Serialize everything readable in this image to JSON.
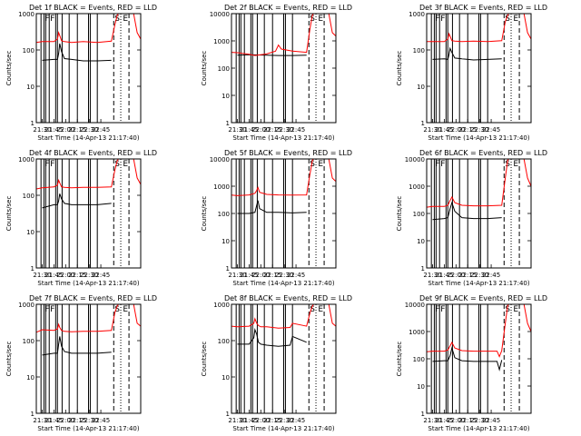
{
  "colors": {
    "events": "#000000",
    "lld": "#ff0000"
  },
  "chart_data": [
    {
      "type": "line",
      "title": "Det 1f BLACK = Events, RED = LLD",
      "xlabel": "Start Time (14-Apr-13 21:17:40)",
      "ylabel": "Counts/sec",
      "yscale": "log",
      "ylim": [
        1,
        1000
      ],
      "xticks": [
        "21:30",
        "21:45",
        "22:00",
        "22:15",
        "22:30",
        "22:45"
      ],
      "yticks": [
        "1",
        "10",
        "100",
        "1000"
      ],
      "markers": [
        "F",
        "F",
        "S",
        "E"
      ],
      "series": [
        {
          "name": "Events",
          "color": "#000000",
          "x": [
            10,
            30,
            36,
            38,
            40,
            43,
            48,
            60,
            80,
            104,
            128
          ],
          "y": [
            52,
            55,
            55,
            80,
            150,
            90,
            58,
            55,
            50,
            50,
            52
          ]
        },
        {
          "name": "LLD",
          "color": "#ff0000",
          "x": [
            0,
            10,
            30,
            36,
            38,
            40,
            43,
            48,
            60,
            80,
            104,
            128,
            134,
            138,
            140,
            160,
            166,
            172,
            178
          ],
          "y": [
            160,
            170,
            170,
            200,
            300,
            250,
            180,
            170,
            160,
            170,
            160,
            175,
            500,
            900,
            1000,
            1000,
            1000,
            300,
            200
          ]
        }
      ]
    },
    {
      "type": "line",
      "title": "Det 2f BLACK = Events, RED = LLD",
      "xlabel": "Start Time (14-Apr-13 21:17:40)",
      "ylabel": "Counts/sec",
      "yscale": "log",
      "ylim": [
        1,
        10000
      ],
      "xticks": [
        "21:30",
        "21:45",
        "22:00",
        "22:15",
        "22:30",
        "22:45"
      ],
      "yticks": [
        "1",
        "10",
        "100",
        "1000",
        "10000"
      ],
      "markers": [
        "S",
        "E"
      ],
      "series": [
        {
          "name": "Events",
          "color": "#000000",
          "x": [
            10,
            30,
            60,
            80,
            104,
            128
          ],
          "y": [
            300,
            310,
            300,
            290,
            290,
            300
          ]
        },
        {
          "name": "LLD",
          "color": "#ff0000",
          "x": [
            0,
            10,
            30,
            40,
            60,
            75,
            80,
            85,
            104,
            128,
            134,
            138,
            140,
            160,
            166,
            172,
            178
          ],
          "y": [
            380,
            370,
            320,
            290,
            330,
            420,
            700,
            500,
            420,
            380,
            3000,
            9000,
            10000,
            10000,
            10000,
            2000,
            1500
          ]
        }
      ]
    },
    {
      "type": "line",
      "title": "Det 3f BLACK = Events, RED = LLD",
      "xlabel": "Start Time (14-Apr-13 21:17:40)",
      "ylabel": "Counts/sec",
      "yscale": "log",
      "ylim": [
        1,
        1000
      ],
      "xticks": [
        "21:30",
        "21:45",
        "22:00",
        "22:15",
        "22:30",
        "22:45"
      ],
      "yticks": [
        "1",
        "10",
        "100",
        "1000"
      ],
      "markers": [
        "F",
        "F",
        "S",
        "E"
      ],
      "series": [
        {
          "name": "Events",
          "color": "#000000",
          "x": [
            10,
            30,
            36,
            38,
            40,
            43,
            48,
            60,
            80,
            104,
            128
          ],
          "y": [
            55,
            57,
            55,
            75,
            110,
            85,
            60,
            57,
            53,
            55,
            57
          ]
        },
        {
          "name": "LLD",
          "color": "#ff0000",
          "x": [
            0,
            10,
            30,
            36,
            38,
            40,
            43,
            48,
            60,
            80,
            104,
            128,
            134,
            138,
            140,
            160,
            166,
            172,
            178
          ],
          "y": [
            170,
            170,
            170,
            200,
            280,
            240,
            180,
            175,
            170,
            175,
            170,
            180,
            600,
            900,
            1000,
            1000,
            1000,
            300,
            200
          ]
        }
      ]
    },
    {
      "type": "line",
      "title": "Det 4f BLACK = Events, RED = LLD",
      "xlabel": "Start Time (14-Apr-13 21:17:40)",
      "ylabel": "Counts/sec",
      "yscale": "log",
      "ylim": [
        1,
        1000
      ],
      "xticks": [
        "21:30",
        "21:45",
        "22:00",
        "22:15",
        "22:30",
        "22:45"
      ],
      "yticks": [
        "1",
        "10",
        "100",
        "1000"
      ],
      "markers": [
        "F",
        "F",
        "S",
        "E"
      ],
      "series": [
        {
          "name": "Events",
          "color": "#000000",
          "x": [
            10,
            30,
            36,
            38,
            40,
            43,
            48,
            60,
            80,
            104,
            128
          ],
          "y": [
            45,
            55,
            55,
            70,
            110,
            80,
            60,
            55,
            55,
            55,
            60
          ]
        },
        {
          "name": "LLD",
          "color": "#ff0000",
          "x": [
            0,
            10,
            30,
            36,
            38,
            40,
            43,
            48,
            60,
            80,
            104,
            128,
            134,
            138,
            140,
            160,
            166,
            172,
            178
          ],
          "y": [
            150,
            160,
            170,
            190,
            260,
            220,
            170,
            165,
            160,
            165,
            165,
            170,
            500,
            900,
            1000,
            1000,
            1000,
            300,
            200
          ]
        }
      ]
    },
    {
      "type": "line",
      "title": "Det 5f BLACK = Events, RED = LLD",
      "xlabel": "Start Time (14-Apr-13 21:17:40)",
      "ylabel": "Counts/sec",
      "yscale": "log",
      "ylim": [
        1,
        10000
      ],
      "xticks": [
        "21:30",
        "21:45",
        "22:00",
        "22:15",
        "22:30",
        "22:45"
      ],
      "yticks": [
        "1",
        "10",
        "100",
        "1000",
        "10000"
      ],
      "markers": [
        "S",
        "E"
      ],
      "series": [
        {
          "name": "Events",
          "color": "#000000",
          "x": [
            10,
            30,
            40,
            43,
            45,
            48,
            60,
            80,
            104,
            128
          ],
          "y": [
            100,
            100,
            110,
            200,
            300,
            150,
            110,
            110,
            105,
            110
          ]
        },
        {
          "name": "LLD",
          "color": "#ff0000",
          "x": [
            0,
            10,
            30,
            40,
            43,
            45,
            48,
            60,
            80,
            104,
            128,
            134,
            138,
            140,
            160,
            166,
            172,
            178
          ],
          "y": [
            470,
            450,
            480,
            550,
            700,
            900,
            600,
            500,
            480,
            470,
            480,
            3000,
            9000,
            10000,
            10000,
            10000,
            2000,
            1500
          ]
        }
      ]
    },
    {
      "type": "line",
      "title": "Det 6f BLACK = Events, RED = LLD",
      "xlabel": "Start Time (14-Apr-13 21:17:40)",
      "ylabel": "Counts/sec",
      "yscale": "log",
      "ylim": [
        1,
        10000
      ],
      "xticks": [
        "21:30",
        "21:45",
        "22:00",
        "22:15",
        "22:30",
        "22:45"
      ],
      "yticks": [
        "1",
        "10",
        "100",
        "1000",
        "10000"
      ],
      "markers": [
        "F",
        "F",
        "S",
        "E"
      ],
      "series": [
        {
          "name": "Events",
          "color": "#000000",
          "x": [
            10,
            30,
            36,
            40,
            43,
            48,
            60,
            80,
            104,
            128
          ],
          "y": [
            60,
            65,
            70,
            150,
            250,
            120,
            70,
            65,
            65,
            70
          ]
        },
        {
          "name": "LLD",
          "color": "#ff0000",
          "x": [
            0,
            10,
            30,
            36,
            40,
            43,
            48,
            60,
            80,
            104,
            128,
            134,
            138,
            140,
            160,
            166,
            172,
            178
          ],
          "y": [
            170,
            180,
            180,
            200,
            300,
            400,
            250,
            200,
            190,
            190,
            200,
            2000,
            9000,
            10000,
            10000,
            10000,
            2000,
            1000
          ]
        }
      ]
    },
    {
      "type": "line",
      "title": "Det 7f BLACK = Events, RED = LLD",
      "xlabel": "Start Time (14-Apr-13 21:17:40)",
      "ylabel": "Counts/sec",
      "yscale": "log",
      "ylim": [
        1,
        1000
      ],
      "xticks": [
        "21:30",
        "21:45",
        "22:00",
        "22:15",
        "22:30",
        "22:45"
      ],
      "yticks": [
        "1",
        "10",
        "100",
        "1000"
      ],
      "markers": [
        "F",
        "F",
        "S",
        "E"
      ],
      "series": [
        {
          "name": "Events",
          "color": "#000000",
          "x": [
            10,
            30,
            36,
            38,
            40,
            43,
            48,
            60,
            80,
            104,
            128
          ],
          "y": [
            40,
            45,
            45,
            80,
            130,
            70,
            50,
            45,
            45,
            45,
            48
          ]
        },
        {
          "name": "LLD",
          "color": "#ff0000",
          "x": [
            0,
            10,
            30,
            36,
            38,
            40,
            43,
            48,
            60,
            80,
            104,
            128,
            134,
            138,
            140,
            160,
            166,
            172,
            178
          ],
          "y": [
            170,
            200,
            190,
            210,
            280,
            230,
            190,
            180,
            175,
            180,
            180,
            190,
            600,
            900,
            1000,
            1000,
            1000,
            300,
            250
          ]
        }
      ]
    },
    {
      "type": "line",
      "title": "Det 8f BLACK = Events, RED = LLD",
      "xlabel": "Start Time (14-Apr-13 21:17:40)",
      "ylabel": "Counts/sec",
      "yscale": "log",
      "ylim": [
        1,
        1000
      ],
      "xticks": [
        "21:30",
        "21:45",
        "22:00",
        "22:15",
        "22:30",
        "22:45"
      ],
      "yticks": [
        "1",
        "10",
        "100",
        "1000"
      ],
      "markers": [
        "S",
        "E"
      ],
      "series": [
        {
          "name": "Events",
          "color": "#000000",
          "x": [
            10,
            30,
            38,
            40,
            43,
            46,
            50,
            60,
            80,
            100,
            104,
            128
          ],
          "y": [
            80,
            80,
            120,
            200,
            150,
            90,
            80,
            75,
            70,
            75,
            130,
            90
          ]
        },
        {
          "name": "LLD",
          "color": "#ff0000",
          "x": [
            0,
            10,
            30,
            38,
            40,
            43,
            46,
            50,
            60,
            80,
            100,
            104,
            128,
            134,
            138,
            140,
            160,
            166,
            172,
            178
          ],
          "y": [
            250,
            240,
            250,
            300,
            400,
            300,
            260,
            240,
            240,
            220,
            230,
            300,
            250,
            600,
            900,
            1000,
            1000,
            1000,
            300,
            250
          ]
        }
      ]
    },
    {
      "type": "line",
      "title": "Det 9f BLACK = Events, RED = LLD",
      "xlabel": "Start Time (14-Apr-13 21:17:40)",
      "ylabel": "Counts/sec",
      "yscale": "log",
      "ylim": [
        1,
        10000
      ],
      "xticks": [
        "21:30",
        "21:45",
        "22:00",
        "22:15",
        "22:30",
        "22:45"
      ],
      "yticks": [
        "1",
        "10",
        "100",
        "1000",
        "10000"
      ],
      "markers": [
        "F",
        "F",
        "S",
        "E"
      ],
      "series": [
        {
          "name": "Events",
          "color": "#000000",
          "x": [
            10,
            30,
            36,
            40,
            43,
            48,
            60,
            80,
            104,
            120,
            124,
            128
          ],
          "y": [
            80,
            85,
            85,
            130,
            250,
            110,
            85,
            80,
            80,
            80,
            40,
            90
          ]
        },
        {
          "name": "LLD",
          "color": "#ff0000",
          "x": [
            0,
            10,
            30,
            36,
            40,
            43,
            48,
            60,
            80,
            104,
            120,
            124,
            128,
            134,
            138,
            140,
            160,
            166,
            172,
            178
          ],
          "y": [
            180,
            190,
            190,
            210,
            300,
            400,
            250,
            200,
            190,
            190,
            190,
            120,
            200,
            2000,
            9000,
            10000,
            10000,
            10000,
            2000,
            1000
          ]
        }
      ]
    }
  ]
}
